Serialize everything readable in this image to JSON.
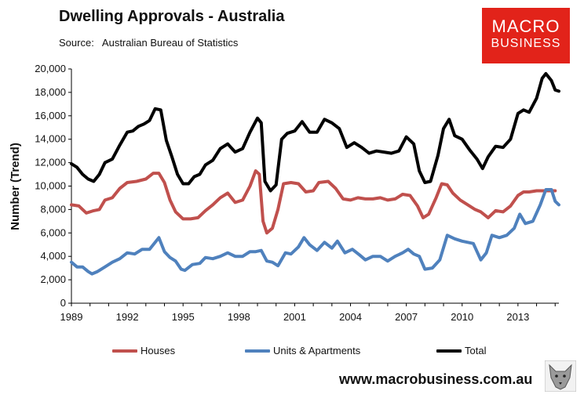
{
  "header": {
    "title": "Dwelling Approvals - Australia",
    "source": "Source:   Australian Bureau of Statistics"
  },
  "logo": {
    "line1": "MACRO",
    "line2": "BUSINESS"
  },
  "footer": {
    "url": "www.macrobusiness.com.au"
  },
  "colors": {
    "houses": "#c0504d",
    "units": "#4f81bd",
    "total": "#000000"
  },
  "chart_data": {
    "type": "line",
    "title": "Dwelling Approvals - Australia",
    "ylabel": "Number (Trend)",
    "xlabel": "",
    "xlim": [
      1989,
      2015.2
    ],
    "ylim": [
      0,
      20000
    ],
    "x_ticks": [
      "1989",
      "1992",
      "1995",
      "1998",
      "2001",
      "2004",
      "2007",
      "2010",
      "2013"
    ],
    "y_ticks": [
      "0",
      "2,000",
      "4,000",
      "6,000",
      "8,000",
      "10,000",
      "12,000",
      "14,000",
      "16,000",
      "18,000",
      "20,000"
    ],
    "grid": false,
    "legend": "bottom",
    "series": [
      {
        "name": "Houses",
        "color": "#c0504d",
        "points": [
          [
            1989,
            8400
          ],
          [
            1989.4,
            8300
          ],
          [
            1989.8,
            7700
          ],
          [
            1990.2,
            7900
          ],
          [
            1990.5,
            8000
          ],
          [
            1990.8,
            8800
          ],
          [
            1991.2,
            9000
          ],
          [
            1991.6,
            9800
          ],
          [
            1992,
            10300
          ],
          [
            1992.5,
            10400
          ],
          [
            1993,
            10600
          ],
          [
            1993.4,
            11100
          ],
          [
            1993.7,
            11100
          ],
          [
            1994,
            10300
          ],
          [
            1994.3,
            8800
          ],
          [
            1994.6,
            7800
          ],
          [
            1995,
            7200
          ],
          [
            1995.4,
            7200
          ],
          [
            1995.8,
            7300
          ],
          [
            1996.2,
            7900
          ],
          [
            1996.6,
            8400
          ],
          [
            1997,
            9000
          ],
          [
            1997.4,
            9400
          ],
          [
            1997.8,
            8600
          ],
          [
            1998.2,
            8800
          ],
          [
            1998.6,
            10000
          ],
          [
            1998.9,
            11300
          ],
          [
            1999.1,
            11000
          ],
          [
            1999.3,
            7000
          ],
          [
            1999.5,
            6000
          ],
          [
            1999.8,
            6400
          ],
          [
            2000.1,
            8000
          ],
          [
            2000.4,
            10200
          ],
          [
            2000.8,
            10300
          ],
          [
            2001.2,
            10200
          ],
          [
            2001.6,
            9500
          ],
          [
            2002,
            9600
          ],
          [
            2002.3,
            10300
          ],
          [
            2002.8,
            10400
          ],
          [
            2003.2,
            9800
          ],
          [
            2003.6,
            8900
          ],
          [
            2004,
            8800
          ],
          [
            2004.4,
            9000
          ],
          [
            2004.8,
            8900
          ],
          [
            2005.2,
            8900
          ],
          [
            2005.6,
            9000
          ],
          [
            2006,
            8800
          ],
          [
            2006.4,
            8900
          ],
          [
            2006.8,
            9300
          ],
          [
            2007.2,
            9200
          ],
          [
            2007.6,
            8300
          ],
          [
            2007.9,
            7300
          ],
          [
            2008.2,
            7600
          ],
          [
            2008.6,
            9000
          ],
          [
            2008.9,
            10200
          ],
          [
            2009.2,
            10100
          ],
          [
            2009.5,
            9400
          ],
          [
            2009.9,
            8800
          ],
          [
            2010.3,
            8400
          ],
          [
            2010.7,
            8000
          ],
          [
            2011,
            7800
          ],
          [
            2011.4,
            7300
          ],
          [
            2011.8,
            7900
          ],
          [
            2012.2,
            7800
          ],
          [
            2012.6,
            8300
          ],
          [
            2013,
            9200
          ],
          [
            2013.3,
            9500
          ],
          [
            2013.6,
            9500
          ],
          [
            2014,
            9600
          ],
          [
            2014.5,
            9600
          ],
          [
            2015,
            9600
          ]
        ]
      },
      {
        "name": "Units & Apartments",
        "color": "#4f81bd",
        "points": [
          [
            1989,
            3500
          ],
          [
            1989.3,
            3100
          ],
          [
            1989.6,
            3100
          ],
          [
            1989.9,
            2700
          ],
          [
            1990.1,
            2500
          ],
          [
            1990.4,
            2700
          ],
          [
            1990.8,
            3100
          ],
          [
            1991.2,
            3500
          ],
          [
            1991.6,
            3800
          ],
          [
            1992,
            4300
          ],
          [
            1992.4,
            4200
          ],
          [
            1992.8,
            4600
          ],
          [
            1993.2,
            4600
          ],
          [
            1993.5,
            5200
          ],
          [
            1993.7,
            5600
          ],
          [
            1994,
            4400
          ],
          [
            1994.3,
            3900
          ],
          [
            1994.6,
            3600
          ],
          [
            1994.9,
            2900
          ],
          [
            1995.1,
            2800
          ],
          [
            1995.5,
            3300
          ],
          [
            1995.9,
            3400
          ],
          [
            1996.2,
            3900
          ],
          [
            1996.6,
            3800
          ],
          [
            1997,
            4000
          ],
          [
            1997.4,
            4300
          ],
          [
            1997.8,
            4000
          ],
          [
            1998.2,
            4000
          ],
          [
            1998.6,
            4400
          ],
          [
            1998.9,
            4400
          ],
          [
            1999.2,
            4500
          ],
          [
            1999.5,
            3600
          ],
          [
            1999.8,
            3500
          ],
          [
            2000.1,
            3200
          ],
          [
            2000.5,
            4300
          ],
          [
            2000.8,
            4200
          ],
          [
            2001.2,
            4800
          ],
          [
            2001.5,
            5600
          ],
          [
            2001.8,
            5000
          ],
          [
            2002.2,
            4500
          ],
          [
            2002.6,
            5200
          ],
          [
            2003,
            4700
          ],
          [
            2003.3,
            5300
          ],
          [
            2003.7,
            4300
          ],
          [
            2004.1,
            4600
          ],
          [
            2004.5,
            4100
          ],
          [
            2004.8,
            3700
          ],
          [
            2005.2,
            4000
          ],
          [
            2005.6,
            4000
          ],
          [
            2006,
            3600
          ],
          [
            2006.4,
            4000
          ],
          [
            2006.8,
            4300
          ],
          [
            2007.1,
            4600
          ],
          [
            2007.4,
            4200
          ],
          [
            2007.7,
            4000
          ],
          [
            2008,
            2900
          ],
          [
            2008.4,
            3000
          ],
          [
            2008.8,
            3700
          ],
          [
            2009.2,
            5800
          ],
          [
            2009.6,
            5500
          ],
          [
            2010,
            5300
          ],
          [
            2010.3,
            5200
          ],
          [
            2010.6,
            5100
          ],
          [
            2011,
            3700
          ],
          [
            2011.3,
            4300
          ],
          [
            2011.6,
            5800
          ],
          [
            2012,
            5600
          ],
          [
            2012.4,
            5800
          ],
          [
            2012.8,
            6400
          ],
          [
            2013.1,
            7600
          ],
          [
            2013.4,
            6800
          ],
          [
            2013.8,
            7000
          ],
          [
            2014.2,
            8400
          ],
          [
            2014.5,
            9700
          ],
          [
            2014.8,
            9700
          ],
          [
            2015,
            8700
          ],
          [
            2015.2,
            8400
          ]
        ]
      },
      {
        "name": "Total",
        "color": "#000000",
        "points": [
          [
            1989,
            11900
          ],
          [
            1989.3,
            11600
          ],
          [
            1989.6,
            11000
          ],
          [
            1989.9,
            10600
          ],
          [
            1990.2,
            10400
          ],
          [
            1990.5,
            11000
          ],
          [
            1990.8,
            12000
          ],
          [
            1991.2,
            12300
          ],
          [
            1991.6,
            13500
          ],
          [
            1992,
            14600
          ],
          [
            1992.3,
            14700
          ],
          [
            1992.6,
            15100
          ],
          [
            1992.9,
            15300
          ],
          [
            1993.2,
            15600
          ],
          [
            1993.5,
            16600
          ],
          [
            1993.8,
            16500
          ],
          [
            1994.1,
            13900
          ],
          [
            1994.4,
            12500
          ],
          [
            1994.7,
            11000
          ],
          [
            1995,
            10200
          ],
          [
            1995.3,
            10200
          ],
          [
            1995.6,
            10800
          ],
          [
            1995.9,
            11000
          ],
          [
            1996.2,
            11800
          ],
          [
            1996.6,
            12200
          ],
          [
            1997,
            13200
          ],
          [
            1997.4,
            13600
          ],
          [
            1997.8,
            12900
          ],
          [
            1998.2,
            13200
          ],
          [
            1998.6,
            14600
          ],
          [
            1999,
            15800
          ],
          [
            1999.2,
            15400
          ],
          [
            1999.4,
            10400
          ],
          [
            1999.7,
            9600
          ],
          [
            2000,
            10100
          ],
          [
            2000.3,
            14000
          ],
          [
            2000.6,
            14500
          ],
          [
            2001,
            14700
          ],
          [
            2001.4,
            15500
          ],
          [
            2001.8,
            14600
          ],
          [
            2002.2,
            14600
          ],
          [
            2002.6,
            15700
          ],
          [
            2003,
            15400
          ],
          [
            2003.4,
            14900
          ],
          [
            2003.8,
            13300
          ],
          [
            2004.2,
            13700
          ],
          [
            2004.6,
            13300
          ],
          [
            2005,
            12800
          ],
          [
            2005.4,
            13000
          ],
          [
            2005.8,
            12900
          ],
          [
            2006.2,
            12800
          ],
          [
            2006.6,
            13000
          ],
          [
            2007,
            14200
          ],
          [
            2007.4,
            13600
          ],
          [
            2007.7,
            11300
          ],
          [
            2008,
            10300
          ],
          [
            2008.3,
            10400
          ],
          [
            2008.7,
            12600
          ],
          [
            2009,
            14900
          ],
          [
            2009.3,
            15700
          ],
          [
            2009.6,
            14300
          ],
          [
            2010,
            14000
          ],
          [
            2010.4,
            13100
          ],
          [
            2010.8,
            12300
          ],
          [
            2011.1,
            11500
          ],
          [
            2011.4,
            12500
          ],
          [
            2011.8,
            13400
          ],
          [
            2012.2,
            13300
          ],
          [
            2012.6,
            14000
          ],
          [
            2013,
            16200
          ],
          [
            2013.3,
            16500
          ],
          [
            2013.6,
            16300
          ],
          [
            2014,
            17500
          ],
          [
            2014.3,
            19200
          ],
          [
            2014.5,
            19600
          ],
          [
            2014.8,
            19000
          ],
          [
            2015,
            18200
          ],
          [
            2015.2,
            18100
          ]
        ]
      }
    ]
  }
}
